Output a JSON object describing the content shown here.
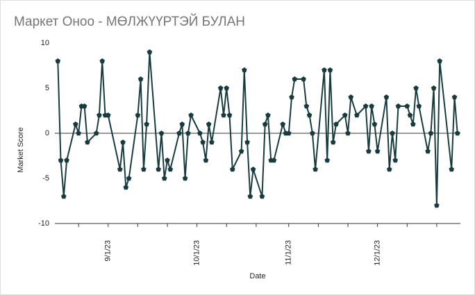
{
  "chart_data": {
    "type": "line",
    "title": "Маркет Оноо - МӨЛЖҮҮРТЭЙ БУЛАН",
    "x_label": "Date",
    "y_label": "Market Score",
    "x": [
      "2023-08-15",
      "2023-08-16",
      "2023-08-17",
      "2023-08-18",
      "2023-08-21",
      "2023-08-22",
      "2023-08-23",
      "2023-08-24",
      "2023-08-25",
      "2023-08-28",
      "2023-08-29",
      "2023-08-30",
      "2023-08-31",
      "2023-09-01",
      "2023-09-05",
      "2023-09-06",
      "2023-09-07",
      "2023-09-08",
      "2023-09-11",
      "2023-09-12",
      "2023-09-13",
      "2023-09-14",
      "2023-09-15",
      "2023-09-18",
      "2023-09-19",
      "2023-09-20",
      "2023-09-21",
      "2023-09-22",
      "2023-09-25",
      "2023-09-26",
      "2023-09-27",
      "2023-09-28",
      "2023-09-29",
      "2023-10-02",
      "2023-10-03",
      "2023-10-04",
      "2023-10-05",
      "2023-10-06",
      "2023-10-09",
      "2023-10-10",
      "2023-10-11",
      "2023-10-12",
      "2023-10-13",
      "2023-10-16",
      "2023-10-17",
      "2023-10-18",
      "2023-10-19",
      "2023-10-20",
      "2023-10-23",
      "2023-10-24",
      "2023-10-25",
      "2023-10-26",
      "2023-10-27",
      "2023-10-30",
      "2023-10-31",
      "2023-11-01",
      "2023-11-02",
      "2023-11-03",
      "2023-11-06",
      "2023-11-07",
      "2023-11-08",
      "2023-11-09",
      "2023-11-10",
      "2023-11-13",
      "2023-11-14",
      "2023-11-15",
      "2023-11-16",
      "2023-11-17",
      "2023-11-20",
      "2023-11-21",
      "2023-11-22",
      "2023-11-24",
      "2023-11-27",
      "2023-11-28",
      "2023-11-29",
      "2023-11-30",
      "2023-12-01",
      "2023-12-04",
      "2023-12-05",
      "2023-12-06",
      "2023-12-07",
      "2023-12-08",
      "2023-12-11",
      "2023-12-12",
      "2023-12-13",
      "2023-12-14",
      "2023-12-15",
      "2023-12-18",
      "2023-12-19",
      "2023-12-20",
      "2023-12-21",
      "2023-12-22",
      "2023-12-26",
      "2023-12-27",
      "2023-12-28"
    ],
    "series": [
      {
        "name": "Market Score",
        "color": "#173b3f",
        "values": [
          8,
          -3,
          -7,
          -3,
          1,
          0,
          3,
          3,
          -1,
          0,
          2,
          8,
          2,
          2,
          -4,
          -1,
          -6,
          -5,
          2,
          6,
          -4,
          1,
          9,
          -4,
          0,
          -5,
          -3,
          -4,
          0,
          1,
          -5,
          0,
          2,
          0,
          -1,
          -3,
          1,
          -1,
          5,
          2,
          5,
          2,
          -4,
          -2,
          7,
          -1,
          -7,
          -4,
          -7,
          1,
          2,
          -3,
          -3,
          1,
          0,
          0,
          4,
          6,
          6,
          3,
          2,
          0,
          -4,
          7,
          -3,
          7,
          -1,
          1,
          2,
          0,
          4,
          2,
          3,
          -2,
          3,
          1,
          -2,
          4,
          -4,
          0,
          -3,
          3,
          3,
          2,
          1,
          5,
          3,
          -2,
          0,
          5,
          -8,
          8,
          -4,
          4,
          0
        ]
      }
    ],
    "xlim": [
      "2023-08-14",
      "2023-12-29"
    ],
    "xticks": [
      {
        "value": "2023-08-22",
        "label": null
      },
      {
        "value": "2023-09-01",
        "label": "9/1/23"
      },
      {
        "value": "2023-09-11",
        "label": null
      },
      {
        "value": "2023-09-21",
        "label": null
      },
      {
        "value": "2023-10-01",
        "label": "10/1/23"
      },
      {
        "value": "2023-10-11",
        "label": null
      },
      {
        "value": "2023-10-21",
        "label": null
      },
      {
        "value": "2023-11-01",
        "label": "11/1/23"
      },
      {
        "value": "2023-11-11",
        "label": null
      },
      {
        "value": "2023-11-21",
        "label": null
      },
      {
        "value": "2023-12-01",
        "label": "12/1/23"
      },
      {
        "value": "2023-12-11",
        "label": null
      },
      {
        "value": "2023-12-21",
        "label": null
      }
    ],
    "ylim": [
      -10,
      10
    ],
    "yticks": [
      -10,
      -5,
      0,
      5,
      10
    ]
  }
}
